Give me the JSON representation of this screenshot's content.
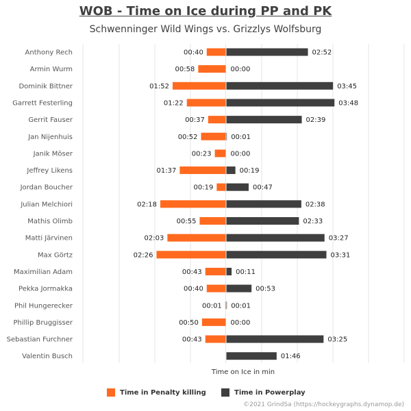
{
  "title": "WOB - Time on Ice during PP and PK",
  "subtitle": "Schwenninger Wild Wings vs. Grizzlys Wolfsburg",
  "credit": "©2021 GrindSa (https://hockeygraphs.dynamop.de)",
  "colors": {
    "pk": "#ff6a1f",
    "pp": "#3f3f3f",
    "grid": "#e6e6e6",
    "axis": "#cccccc"
  },
  "chart_data": {
    "type": "bar",
    "orientation": "horizontal-diverging",
    "xlabel": "Time on Ice in min",
    "grid": true,
    "legend_position": "bottom",
    "categories": [
      "Anthony Rech",
      "Armin Wurm",
      "Dominik Bittner",
      "Garrett Festerling",
      "Gerrit Fauser",
      "Jan Nijenhuis",
      "Janik Möser",
      "Jeffrey Likens",
      "Jordan Boucher",
      "Julian Melchiori",
      "Mathis Olimb",
      "Matti Järvinen",
      "Max Görtz",
      "Maximilian Adam",
      "Pekka Jormakka",
      "Phil Hungerecker",
      "Phillip Bruggisser",
      "Sebastian Furchner",
      "Valentin Busch"
    ],
    "series": [
      {
        "name": "Time in Penalty killing",
        "values": [
          40,
          58,
          112,
          82,
          37,
          52,
          23,
          97,
          19,
          138,
          55,
          123,
          146,
          43,
          40,
          1,
          50,
          43,
          null
        ],
        "labels": [
          "00:40",
          "00:58",
          "01:52",
          "01:22",
          "00:37",
          "00:52",
          "00:23",
          "01:37",
          "00:19",
          "02:18",
          "00:55",
          "02:03",
          "02:26",
          "00:43",
          "00:40",
          "00:01",
          "00:50",
          "00:43",
          ""
        ]
      },
      {
        "name": "Time in Powerplay",
        "values": [
          172,
          0,
          225,
          228,
          159,
          1,
          0,
          19,
          47,
          158,
          153,
          207,
          211,
          11,
          53,
          1,
          0,
          205,
          106
        ],
        "labels": [
          "02:52",
          "00:00",
          "03:45",
          "03:48",
          "02:39",
          "00:01",
          "00:00",
          "00:19",
          "00:47",
          "02:38",
          "02:33",
          "03:27",
          "03:31",
          "00:11",
          "00:53",
          "00:01",
          "00:00",
          "03:25",
          "01:46"
        ]
      }
    ]
  }
}
